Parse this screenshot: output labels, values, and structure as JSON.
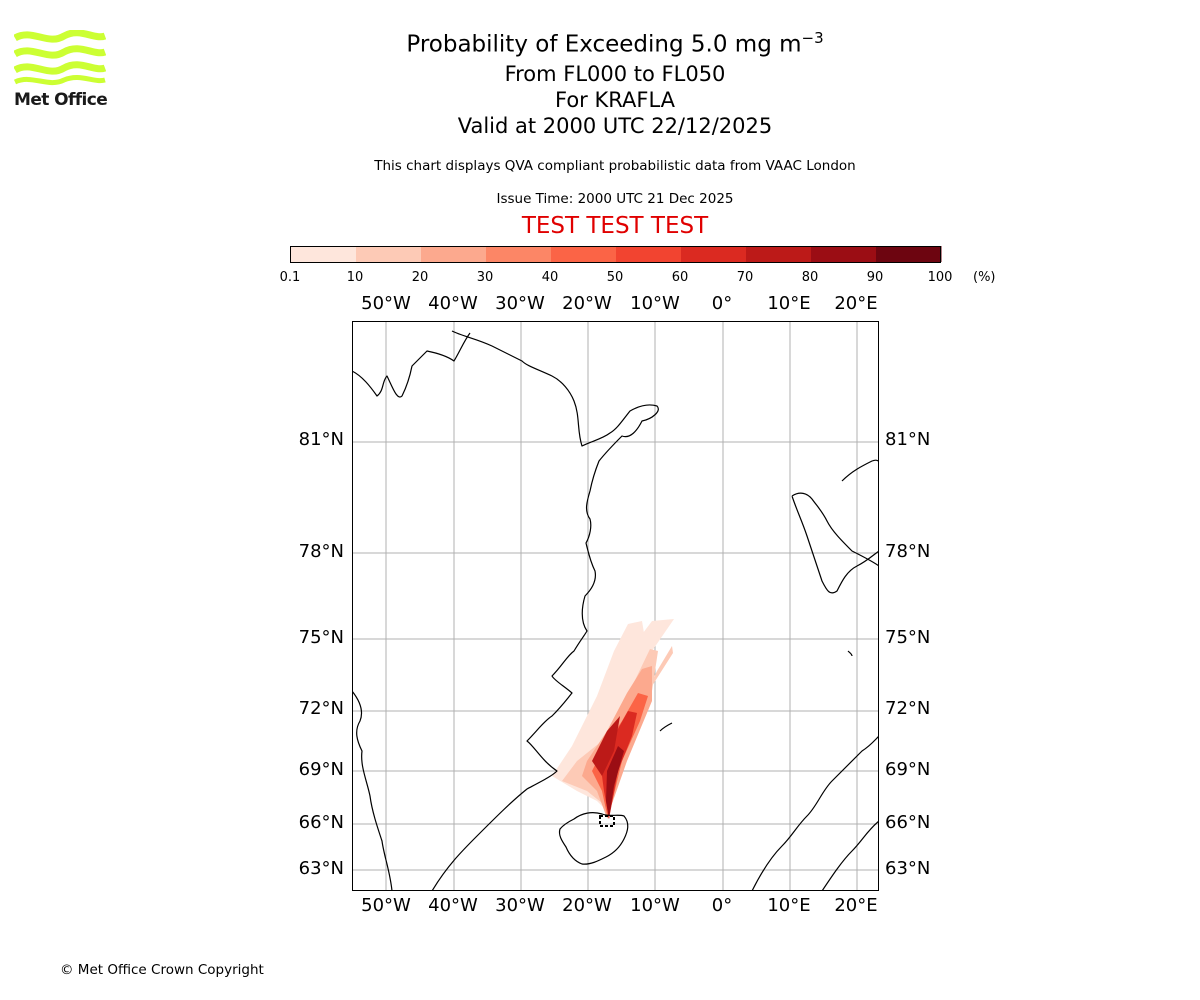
{
  "logo": {
    "text": "Met Office",
    "color": "#ccff33"
  },
  "title": {
    "line1_main": "Probability of Exceeding 5.0 mg m",
    "line1_exp": "−3",
    "line2": "From FL000 to FL050",
    "line3": "For KRAFLA",
    "line4": "Valid at 2000 UTC 22/12/2025"
  },
  "subtitle": "This chart displays QVA compliant probabilistic data from VAAC London",
  "issue_time": "Issue Time: 2000 UTC 21 Dec 2025",
  "test_banner": "TEST TEST TEST",
  "colorbar": {
    "ticks": [
      "0.1",
      "10",
      "20",
      "30",
      "40",
      "50",
      "60",
      "70",
      "80",
      "90",
      "100"
    ],
    "unit": "(%)",
    "colors": [
      "#fee6dc",
      "#fdcab6",
      "#fca98e",
      "#fc8666",
      "#fb6446",
      "#f24430",
      "#db2a21",
      "#bc1a18",
      "#9b0d14",
      "#6d0510"
    ]
  },
  "map": {
    "lon_ticks": [
      "50°W",
      "40°W",
      "30°W",
      "20°W",
      "10°W",
      "0°",
      "10°E",
      "20°E"
    ],
    "lat_ticks": [
      "81°N",
      "78°N",
      "75°N",
      "72°N",
      "69°N",
      "66°N",
      "63°N"
    ],
    "volcano": "KRAFLA",
    "volcano_lat": 65.7,
    "volcano_lon": -16.8
  },
  "footer": "© Met Office Crown Copyright"
}
